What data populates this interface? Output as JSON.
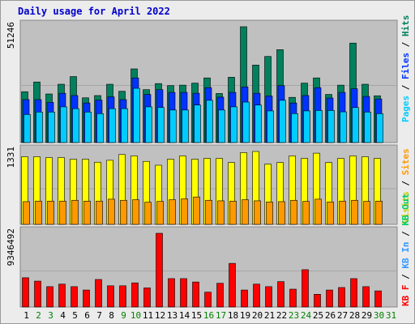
{
  "title": "Daily usage for April 2022",
  "colors": {
    "background": "#ececec",
    "panel": "#c0c0c0",
    "pages": "#00ccff",
    "files": "#0033ff",
    "hits": "#00805c",
    "visits": "#ffff00",
    "sites": "#ff9900",
    "kb_f": "#ff0000",
    "kb_in": "#3399ff",
    "kb_out": "#00cc66"
  },
  "chart_data": [
    {
      "type": "bar",
      "panel": "top",
      "y_max_label": "51246",
      "y_max": 51246,
      "x": [
        "1",
        "2",
        "3",
        "4",
        "5",
        "6",
        "7",
        "8",
        "9",
        "10",
        "11",
        "12",
        "13",
        "14",
        "15",
        "16",
        "17",
        "18",
        "19",
        "20",
        "21",
        "22",
        "23",
        "24",
        "25",
        "26",
        "27",
        "28",
        "29",
        "30",
        "31"
      ],
      "series": [
        {
          "name": "Hits",
          "color_key": "hits",
          "values": [
            22500,
            26800,
            21500,
            25800,
            29200,
            19800,
            20800,
            25800,
            22700,
            32600,
            23400,
            26100,
            25200,
            25400,
            26300,
            28600,
            21700,
            28900,
            51246,
            34300,
            38100,
            41100,
            20000,
            26300,
            28600,
            21300,
            25400,
            44000,
            25800,
            20700,
            null
          ]
        },
        {
          "name": "Files",
          "color_key": "files",
          "values": [
            19000,
            19000,
            17800,
            21800,
            20800,
            17500,
            18800,
            20200,
            19000,
            28600,
            21300,
            23400,
            22200,
            22200,
            21800,
            24300,
            20100,
            22200,
            24600,
            21800,
            20600,
            25200,
            17500,
            20800,
            24300,
            19700,
            22200,
            23800,
            20400,
            19300,
            null
          ]
        },
        {
          "name": "Pages",
          "color_key": "pages",
          "values": [
            12400,
            13500,
            13500,
            15800,
            15000,
            13500,
            12800,
            15000,
            15000,
            24000,
            15800,
            15500,
            14400,
            14400,
            16600,
            18700,
            14400,
            15800,
            17900,
            16600,
            14000,
            18700,
            12800,
            14000,
            14200,
            14200,
            13600,
            15500,
            13500,
            12800,
            null
          ]
        }
      ],
      "legend": [
        "Pages",
        "Files",
        "Hits"
      ]
    },
    {
      "type": "bar",
      "panel": "middle",
      "y_max_label": "1331",
      "y_max": 1331,
      "x": [
        "1",
        "2",
        "3",
        "4",
        "5",
        "6",
        "7",
        "8",
        "9",
        "10",
        "11",
        "12",
        "13",
        "14",
        "15",
        "16",
        "17",
        "18",
        "19",
        "20",
        "21",
        "22",
        "23",
        "24",
        "25",
        "26",
        "27",
        "28",
        "29",
        "30",
        "31"
      ],
      "series": [
        {
          "name": "Visits",
          "color_key": "visits",
          "values": [
            1235,
            1235,
            1220,
            1220,
            1190,
            1190,
            1135,
            1170,
            1275,
            1250,
            1150,
            1080,
            1190,
            1250,
            1190,
            1205,
            1205,
            1130,
            1310,
            1331,
            1100,
            1130,
            1250,
            1205,
            1300,
            1130,
            1205,
            1250,
            1235,
            1205,
            null
          ]
        },
        {
          "name": "Sites",
          "color_key": "sites",
          "values": [
            415,
            425,
            425,
            425,
            440,
            425,
            425,
            460,
            440,
            450,
            405,
            420,
            450,
            465,
            500,
            440,
            430,
            425,
            450,
            430,
            410,
            415,
            440,
            420,
            460,
            410,
            425,
            440,
            420,
            425,
            null
          ]
        }
      ],
      "legend": [
        "Visits",
        "Sites"
      ]
    },
    {
      "type": "bar",
      "panel": "bottom",
      "y_max_label": "9346492",
      "y_max": 9346492,
      "x": [
        "1",
        "2",
        "3",
        "4",
        "5",
        "6",
        "7",
        "8",
        "9",
        "10",
        "11",
        "12",
        "13",
        "14",
        "15",
        "16",
        "17",
        "18",
        "19",
        "20",
        "21",
        "22",
        "23",
        "24",
        "25",
        "26",
        "27",
        "28",
        "29",
        "30",
        "31"
      ],
      "series": [
        {
          "name": "KB F",
          "color_key": "kb_f",
          "values": [
            3710000,
            3280000,
            2580000,
            2900000,
            2580000,
            2150000,
            3490000,
            2690000,
            2690000,
            3060000,
            2420000,
            9346492,
            3600000,
            3600000,
            3170000,
            1880000,
            3010000,
            5530000,
            2150000,
            2900000,
            2580000,
            3220000,
            2260000,
            4730000,
            1610000,
            2150000,
            2470000,
            3600000,
            2580000,
            2040000,
            null
          ]
        }
      ],
      "legend": [
        "KB F",
        "KB In",
        "KB Out"
      ]
    }
  ],
  "x_axis": {
    "labels": [
      "1",
      "2",
      "3",
      "4",
      "5",
      "6",
      "7",
      "8",
      "9",
      "10",
      "11",
      "12",
      "13",
      "14",
      "15",
      "16",
      "17",
      "18",
      "19",
      "20",
      "21",
      "22",
      "23",
      "24",
      "25",
      "26",
      "27",
      "28",
      "29",
      "30",
      "31"
    ],
    "weekend_days": [
      2,
      3,
      9,
      10,
      16,
      17,
      23,
      24,
      30,
      31
    ],
    "weekday_color": "#000000",
    "weekend_color": "#008000"
  }
}
